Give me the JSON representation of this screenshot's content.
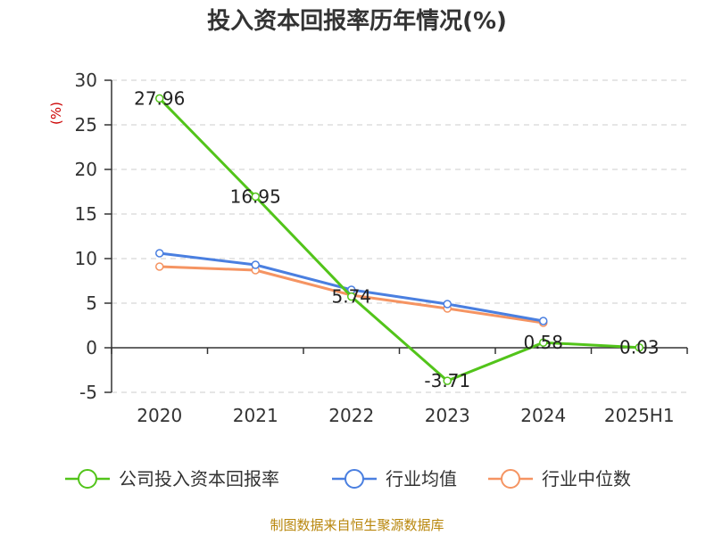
{
  "chart_data": {
    "type": "line",
    "title": "投入资本回报率历年情况(%)",
    "ylabel": "(%)",
    "xlabel": "",
    "categories": [
      "2020",
      "2021",
      "2022",
      "2023",
      "2024",
      "2025H1"
    ],
    "ylim": [
      -5,
      30
    ],
    "yticks": [
      30,
      25,
      20,
      15,
      10,
      5,
      0,
      -5
    ],
    "grid": true,
    "legend_position": "bottom",
    "series": [
      {
        "name": "公司投入资本回报率",
        "color": "#52c41a",
        "values": [
          27.96,
          16.95,
          5.74,
          -3.71,
          0.58,
          0.03
        ],
        "show_labels": true
      },
      {
        "name": "行业均值",
        "color": "#4a7fe0",
        "values": [
          10.6,
          9.3,
          6.5,
          4.9,
          3.0,
          null
        ],
        "show_labels": false
      },
      {
        "name": "行业中位数",
        "color": "#f59462",
        "values": [
          9.1,
          8.7,
          5.9,
          4.4,
          2.8,
          null
        ],
        "show_labels": false
      }
    ]
  },
  "footer": {
    "source": "制图数据来自恒生聚源数据库"
  }
}
